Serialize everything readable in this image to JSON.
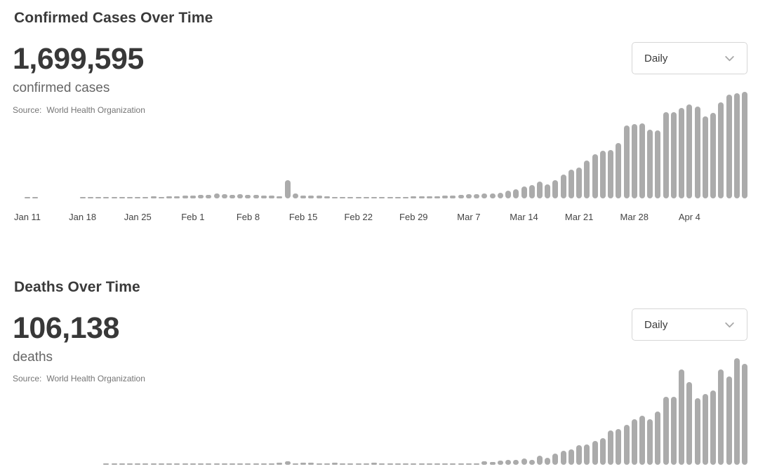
{
  "colors": {
    "bar": "#ababab",
    "title": "#3a3a3a",
    "stat_value": "#383838",
    "stat_label": "#666666",
    "source_text": "#757575",
    "axis_label": "#444444",
    "dropdown_border": "#d6d6d6",
    "chevron": "#a8a8a8"
  },
  "modules": [
    {
      "title": "Confirmed Cases Over Time",
      "stat_value": "1,699,595",
      "stat_label": "confirmed cases",
      "source_prefix": "Source:",
      "source_name": "World Health Organization",
      "dropdown_value": "Daily"
    },
    {
      "title": "Deaths Over Time",
      "stat_value": "106,138",
      "stat_label": "deaths",
      "source_prefix": "Source:",
      "source_name": "World Health Organization",
      "dropdown_value": "Daily"
    }
  ],
  "chart_data": [
    {
      "type": "bar",
      "title": "Confirmed Cases Over Time",
      "series_name": "daily confirmed cases",
      "x_start_date": "Jan 11",
      "x_end_date": "Apr 11",
      "x_labels": [
        "Jan 11",
        "Jan 18",
        "Jan 25",
        "Feb 1",
        "Feb 8",
        "Feb 15",
        "Feb 22",
        "Feb 29",
        "Mar 7",
        "Mar 14",
        "Mar 21",
        "Mar 28",
        "Apr 4"
      ],
      "label_every_n_bars": 7,
      "values": [
        41,
        24,
        0,
        0,
        0,
        0,
        0,
        17,
        59,
        77,
        149,
        131,
        259,
        441,
        694,
        786,
        1771,
        1459,
        1790,
        2005,
        2127,
        2617,
        2830,
        3243,
        3925,
        3743,
        3171,
        3436,
        2702,
        2993,
        2560,
        2070,
        2028,
        15152,
        4248,
        2576,
        2181,
        2119,
        1893,
        617,
        512,
        958,
        1125,
        870,
        578,
        869,
        1000,
        1366,
        1436,
        1831,
        1847,
        1806,
        2020,
        2266,
        2375,
        2873,
        3735,
        3656,
        3994,
        4135,
        4629,
        6703,
        7499,
        9769,
        10982,
        13903,
        11526,
        15123,
        20338,
        24247,
        26069,
        32000,
        37020,
        39827,
        40712,
        46484,
        61537,
        62514,
        63159,
        57610,
        56985,
        72736,
        72839,
        75853,
        79332,
        77035,
        68766,
        71779,
        80756,
        87028,
        88537,
        89657
      ],
      "ylim": [
        0,
        90000
      ],
      "grid": false,
      "y_axis_shown": false,
      "legend": "none"
    },
    {
      "type": "bar",
      "title": "Deaths Over Time",
      "series_name": "daily deaths",
      "x_start_date": "Jan 11",
      "x_end_date": "Apr 11",
      "x_labels": [],
      "label_every_n_bars": 7,
      "values": [
        0,
        0,
        0,
        0,
        0,
        0,
        0,
        0,
        0,
        0,
        4,
        8,
        8,
        16,
        15,
        24,
        26,
        26,
        38,
        43,
        46,
        45,
        57,
        64,
        66,
        72,
        73,
        86,
        89,
        97,
        108,
        97,
        146,
        254,
        113,
        144,
        142,
        105,
        98,
        139,
        115,
        118,
        109,
        97,
        160,
        67,
        72,
        36,
        45,
        67,
        58,
        67,
        72,
        85,
        80,
        100,
        103,
        97,
        225,
        203,
        272,
        332,
        342,
        440,
        337,
        634,
        475,
        786,
        961,
        1090,
        1343,
        1395,
        1646,
        1855,
        2374,
        2504,
        2774,
        3193,
        3423,
        3156,
        3718,
        4733,
        4760,
        6664,
        5762,
        4658,
        4910,
        5161,
        6664,
        6161,
        7421,
        7014
      ],
      "ylim": [
        0,
        7500
      ],
      "grid": false,
      "y_axis_shown": false,
      "legend": "none"
    }
  ]
}
